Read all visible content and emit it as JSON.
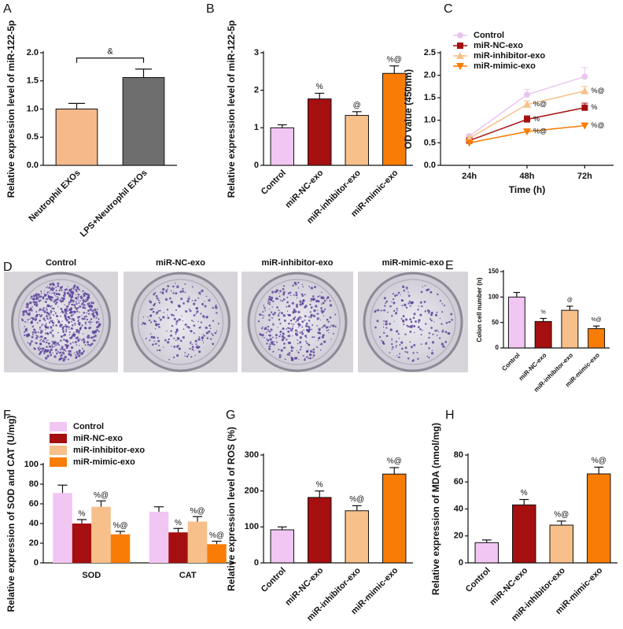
{
  "chart_data": [
    {
      "panel": "A",
      "type": "bar",
      "ylabel": "Relative expression level of miR-122-5p",
      "categories": [
        "Neutrophil EXOs",
        "LPS+Neutrophil EXOs"
      ],
      "values": [
        1.0,
        1.56
      ],
      "errors": [
        0.1,
        0.15
      ],
      "colors": [
        "#f5b98a",
        "#6e6e6e"
      ],
      "bracket_label": "&",
      "ylim": [
        0,
        2
      ],
      "yticks": [
        {
          "value": 0,
          "label": "0.0"
        },
        0.5,
        {
          "value": 1,
          "label": "1.0"
        },
        1.5,
        {
          "value": 2,
          "label": "2.0"
        }
      ]
    },
    {
      "panel": "B",
      "type": "bar",
      "ylabel": "Relative expression level of miR-122-5p",
      "categories": [
        "Control",
        "miR-NC-exo",
        "miR-inhibitor-exo",
        "miR-mimic-exo"
      ],
      "values": [
        1.0,
        1.77,
        1.33,
        2.45
      ],
      "errors": [
        0.08,
        0.15,
        0.1,
        0.2
      ],
      "colors": [
        "#f1c6f3",
        "#a50f0f",
        "#f7c08a",
        "#f97c06"
      ],
      "annotations": [
        null,
        "%",
        "@",
        "%@"
      ],
      "ylim": [
        0,
        3
      ],
      "yticks": [
        0,
        1,
        2,
        3
      ]
    },
    {
      "panel": "C",
      "type": "line",
      "ylabel": "OD value (450nm)",
      "xlabel": "Time (h)",
      "categories": [
        "24h",
        "48h",
        "72h"
      ],
      "series": [
        {
          "name": "Control",
          "color": "#e9c6f0",
          "marker": "circle",
          "values": [
            0.65,
            1.57,
            1.97
          ],
          "errors": [
            0.04,
            0.12,
            0.2
          ],
          "annotations": [
            null,
            null,
            null
          ]
        },
        {
          "name": "miR-NC-exo",
          "color": "#a50f0f",
          "marker": "square",
          "values": [
            0.55,
            1.02,
            1.28
          ],
          "errors": [
            0.03,
            0.08,
            0.1
          ],
          "annotations": [
            null,
            "%",
            "%"
          ]
        },
        {
          "name": "miR-inhibitor-exo",
          "color": "#f7c08a",
          "marker": "triangle",
          "values": [
            0.6,
            1.35,
            1.65
          ],
          "errors": [
            0.03,
            0.08,
            0.1
          ],
          "annotations": [
            null,
            "%@",
            "%@"
          ]
        },
        {
          "name": "miR-mimic-exo",
          "color": "#f97c06",
          "marker": "triangle-down",
          "values": [
            0.5,
            0.75,
            0.88
          ],
          "errors": [
            0.03,
            0.05,
            0.06
          ],
          "annotations": [
            null,
            "%@",
            "%@"
          ]
        }
      ],
      "ylim": [
        0,
        2.5
      ],
      "yticks": [
        {
          "value": 0,
          "label": "0.0"
        },
        0.5,
        {
          "value": 1,
          "label": "1.0"
        },
        1.5,
        {
          "value": 2,
          "label": "2.0"
        },
        2.5
      ]
    },
    {
      "panel": "E",
      "type": "bar",
      "ylabel": "Colon cell number (n)",
      "categories": [
        "Control",
        "miR-NC-exo",
        "miR-inhibitor-exo",
        "miR-mimic-exo"
      ],
      "values": [
        100,
        52,
        74,
        38
      ],
      "errors": [
        9,
        6,
        8,
        5
      ],
      "colors": [
        "#f1c6f3",
        "#a50f0f",
        "#f7c08a",
        "#f97c06"
      ],
      "annotations": [
        null,
        "%",
        "@",
        "%@"
      ],
      "ylim": [
        0,
        150
      ],
      "yticks": [
        0,
        50,
        100,
        150
      ]
    },
    {
      "panel": "F",
      "type": "grouped_bar",
      "ylabel": "Relative expression of SOD and CAT (U/mg)",
      "categories": [
        "SOD",
        "CAT"
      ],
      "series": [
        {
          "name": "Control",
          "color": "#f1c6f3",
          "values": [
            71,
            52
          ],
          "errors": [
            8,
            5
          ],
          "annotations": [
            null,
            null
          ]
        },
        {
          "name": "miR-NC-exo",
          "color": "#a50f0f",
          "values": [
            40,
            31
          ],
          "errors": [
            4,
            4
          ],
          "annotations": [
            "%",
            "%"
          ]
        },
        {
          "name": "miR-inhibitor-exo",
          "color": "#f7c08a",
          "values": [
            57,
            42
          ],
          "errors": [
            6,
            5
          ],
          "annotations": [
            "%@",
            "%@"
          ]
        },
        {
          "name": "miR-mimic-exo",
          "color": "#f97c06",
          "values": [
            29,
            19
          ],
          "errors": [
            3,
            3
          ],
          "annotations": [
            "%@",
            "%@"
          ]
        }
      ],
      "ylim": [
        0,
        100
      ],
      "yticks": [
        0,
        20,
        40,
        60,
        80,
        100
      ]
    },
    {
      "panel": "G",
      "type": "bar",
      "ylabel": "Relative expression level of ROS (%)",
      "categories": [
        "Control",
        "miR-NC-exo",
        "miR-inhibitor-exo",
        "miR-mimic-exo"
      ],
      "values": [
        92,
        182,
        145,
        247
      ],
      "errors": [
        8,
        18,
        14,
        18
      ],
      "colors": [
        "#f1c6f3",
        "#a50f0f",
        "#f7c08a",
        "#f97c06"
      ],
      "annotations": [
        null,
        "%",
        "%@",
        "%@"
      ],
      "ylim": [
        0,
        300
      ],
      "yticks": [
        0,
        100,
        200,
        300
      ]
    },
    {
      "panel": "H",
      "type": "bar",
      "ylabel": "Relative expression of MDA (nmol/mg)",
      "categories": [
        "Control",
        "miR-NC-exo",
        "miR-inhibitor-exo",
        "miR-mimic-exo"
      ],
      "values": [
        15,
        43,
        28,
        66
      ],
      "errors": [
        2,
        4,
        3,
        5
      ],
      "colors": [
        "#f1c6f3",
        "#a50f0f",
        "#f7c08a",
        "#f97c06"
      ],
      "annotations": [
        null,
        "%",
        "%@",
        "%@"
      ],
      "ylim": [
        0,
        80
      ],
      "yticks": [
        0,
        20,
        40,
        60,
        80
      ]
    }
  ],
  "images": {
    "panel": "D",
    "titles": [
      "Control",
      "miR-NC-exo",
      "miR-inhibitor-exo",
      "miR-mimic-exo"
    ]
  }
}
